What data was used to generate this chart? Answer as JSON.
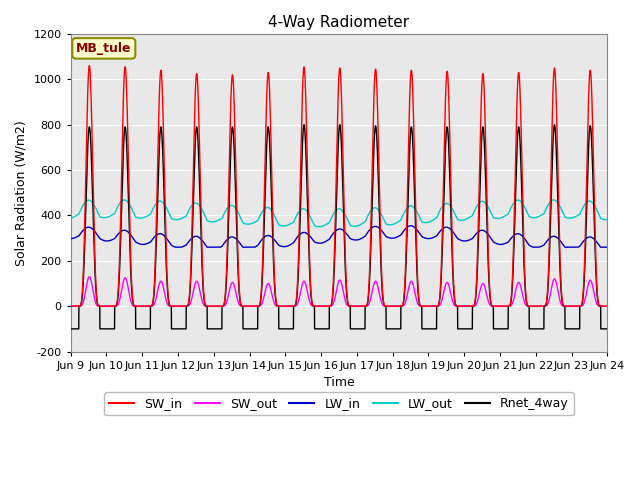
{
  "title": "4-Way Radiometer",
  "xlabel": "Time",
  "ylabel": "Solar Radiation (W/m2)",
  "ylim": [
    -200,
    1200
  ],
  "yticks": [
    -200,
    0,
    200,
    400,
    600,
    800,
    1000,
    1200
  ],
  "x_tick_labels": [
    "Jun 9",
    "Jun 10",
    "Jun 11",
    "Jun 12",
    "Jun 13",
    "Jun 14",
    "Jun 15",
    "Jun 16",
    "Jun 17",
    "Jun 18",
    "Jun 19",
    "Jun 20",
    "Jun 21",
    "Jun 22",
    "Jun 23",
    "Jun 24"
  ],
  "station_label": "MB_tule",
  "fig_facecolor": "#ffffff",
  "plot_facecolor": "#e8e8e8",
  "legend_entries": [
    "SW_in",
    "SW_out",
    "LW_in",
    "LW_out",
    "Rnet_4way"
  ],
  "legend_colors": [
    "#ff0000",
    "#ff00ff",
    "#0000ff",
    "#00cccc",
    "#000000"
  ],
  "num_days": 15,
  "day_peaks_SW": [
    1060,
    1055,
    1040,
    1025,
    1020,
    1030,
    1055,
    1050,
    1045,
    1040,
    1035,
    1025,
    1030,
    1050,
    1040
  ],
  "day_peaks_SW_out": [
    130,
    125,
    110,
    110,
    105,
    100,
    110,
    115,
    110,
    110,
    105,
    100,
    105,
    120,
    115
  ],
  "day_peaks_Rnet": [
    790,
    790,
    790,
    790,
    790,
    790,
    800,
    800,
    795,
    790,
    790,
    790,
    790,
    800,
    795
  ],
  "LW_in_base": 290,
  "LW_out_base": 385,
  "sunrise": 5.5,
  "sunset": 19.5,
  "solar_power": 4.0,
  "rnet_night": -100
}
